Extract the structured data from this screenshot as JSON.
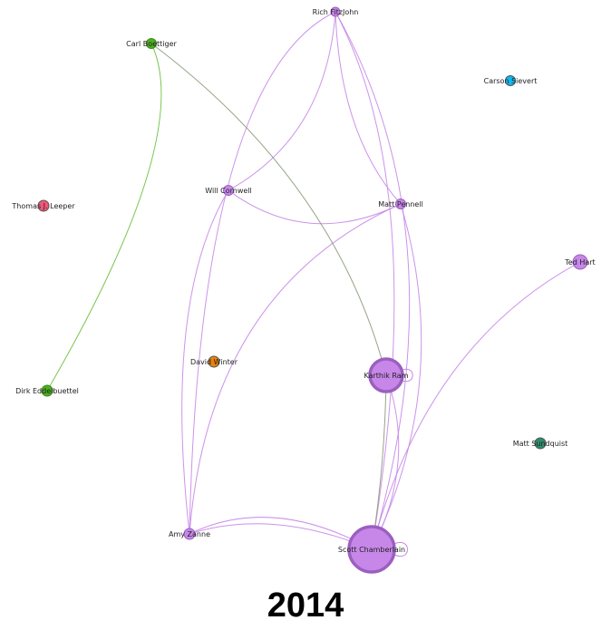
{
  "year_label": "2014",
  "colors": {
    "purple": "#c787e8",
    "purple_stroke": "#9b5fc0",
    "green": "#4caf22",
    "green_stroke": "#3a8c18",
    "green_edge": "#6bbf3a",
    "gray_edge": "#8a9a7a",
    "cyan": "#11b8f0",
    "pink": "#f0587a",
    "orange": "#e8820c",
    "teal": "#2e8b6e"
  },
  "nodes": [
    {
      "id": "rich",
      "label": "Rich FitzJohn",
      "color": "purple"
    },
    {
      "id": "carl",
      "label": "Carl Boettiger",
      "color": "green"
    },
    {
      "id": "carson",
      "label": "Carson Sievert",
      "color": "cyan"
    },
    {
      "id": "thomas",
      "label": "Thomas J. Leeper",
      "color": "pink"
    },
    {
      "id": "will",
      "label": "Will Cornwell",
      "color": "purple"
    },
    {
      "id": "matt_p",
      "label": "Matt Pennell",
      "color": "purple"
    },
    {
      "id": "ted",
      "label": "Ted Hart",
      "color": "purple"
    },
    {
      "id": "david",
      "label": "David Winter",
      "color": "orange"
    },
    {
      "id": "karthik",
      "label": "Karthik Ram",
      "color": "purple"
    },
    {
      "id": "dirk",
      "label": "Dirk Eddelbuettel",
      "color": "green"
    },
    {
      "id": "matt_s",
      "label": "Matt Sundquist",
      "color": "teal"
    },
    {
      "id": "amy",
      "label": "Amy Zanne",
      "color": "purple"
    },
    {
      "id": "scott",
      "label": "Scott Chamberlain",
      "color": "purple"
    }
  ]
}
